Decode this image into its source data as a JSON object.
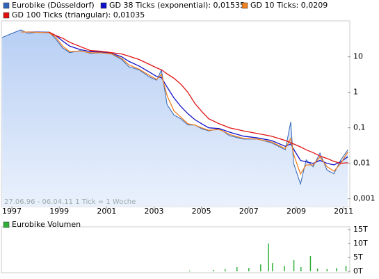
{
  "chart_data": [
    {
      "type": "line",
      "log_scale": true,
      "grid": false,
      "annotation": "27.06.96 - 06.04.11   1 Tick = 1 Woche",
      "xlim": [
        1996.5,
        2011.26
      ],
      "xticks": [
        1997,
        1999,
        2001,
        2003,
        2005,
        2007,
        2009,
        2011
      ],
      "ylim": [
        0.0006,
        90
      ],
      "yticks": [
        10,
        1,
        {
          "value": 0.1,
          "label": "0,1"
        },
        {
          "value": 0.01,
          "label": "0,01"
        },
        {
          "value": 0.001,
          "label": "0,001"
        }
      ],
      "x": [
        1996.59,
        1997.09,
        1997.38,
        1997.68,
        1998.12,
        1998.56,
        1998.85,
        1999.14,
        1999.44,
        1999.88,
        2000.32,
        2000.76,
        2001.2,
        2001.64,
        2001.93,
        2002.37,
        2002.81,
        2003.11,
        2003.31,
        2003.55,
        2003.84,
        2004.13,
        2004.43,
        2004.72,
        2005.01,
        2005.31,
        2005.75,
        2006.19,
        2006.77,
        2007.36,
        2007.95,
        2008.54,
        2008.77,
        2008.89,
        2009.18,
        2009.42,
        2009.71,
        2010.0,
        2010.3,
        2010.59,
        2010.88,
        2011.18
      ],
      "series": [
        {
          "name": "Eurobike (Düsseldorf)",
          "color": "#2f64b8",
          "area": true,
          "values": [
            35.2,
            48,
            57.5,
            46,
            50,
            50,
            32,
            17.9,
            13.1,
            15,
            12.5,
            13.1,
            12,
            8.4,
            5.3,
            4.3,
            2.7,
            2.2,
            4.3,
            0.45,
            0.23,
            0.18,
            0.12,
            0.12,
            0.094,
            0.082,
            0.094,
            0.06,
            0.048,
            0.048,
            0.038,
            0.024,
            0.147,
            0.01,
            0.0026,
            0.0125,
            0.008,
            0.0195,
            0.0064,
            0.0051,
            0.0125,
            0.024
          ]
        },
        {
          "name": "GD 38 Ticks (exponential): 0,01535",
          "color": "#1010c8",
          "values": [
            null,
            null,
            null,
            50,
            50,
            48,
            40,
            28,
            20,
            16,
            14,
            13.5,
            12.5,
            10,
            7.5,
            5.5,
            3.7,
            2.8,
            2.6,
            1.4,
            0.7,
            0.4,
            0.25,
            0.17,
            0.13,
            0.1,
            0.095,
            0.075,
            0.058,
            0.052,
            0.044,
            0.03,
            0.035,
            0.025,
            0.012,
            0.011,
            0.01,
            0.012,
            0.01,
            0.009,
            0.011,
            0.01535
          ]
        },
        {
          "name": "GD 10 Ticks: 0,0209",
          "color": "#f08020",
          "values": [
            null,
            null,
            50,
            50,
            49,
            48,
            36,
            20,
            14,
            14.5,
            13,
            13,
            12.2,
            9,
            6,
            4.5,
            3,
            2.3,
            3.2,
            0.8,
            0.3,
            0.2,
            0.13,
            0.12,
            0.1,
            0.085,
            0.09,
            0.065,
            0.05,
            0.048,
            0.04,
            0.026,
            0.05,
            0.018,
            0.005,
            0.009,
            0.009,
            0.015,
            0.008,
            0.006,
            0.01,
            0.0209
          ]
        },
        {
          "name": "GD 100 Ticks (triangular): 0,01035",
          "color": "#e01010",
          "values": [
            null,
            null,
            null,
            null,
            null,
            50,
            40,
            33.6,
            25.7,
            19.6,
            15,
            14.3,
            13.1,
            12,
            10.5,
            8.4,
            6.1,
            4.9,
            4.3,
            3.3,
            2.5,
            1.7,
            1.0,
            0.49,
            0.29,
            0.18,
            0.13,
            0.1,
            0.082,
            0.069,
            0.058,
            0.044,
            0.038,
            0.035,
            0.029,
            0.024,
            0.02,
            0.016,
            0.0137,
            0.0113,
            0.01,
            0.01035
          ]
        }
      ]
    },
    {
      "type": "bar",
      "xlim": [
        1996.5,
        2011.26
      ],
      "ylim": [
        0,
        16000
      ],
      "yticks": [
        {
          "value": 15000,
          "label": "15T"
        },
        {
          "value": 10000,
          "label": "10T"
        },
        {
          "value": 5000,
          "label": "5T"
        },
        {
          "value": 0,
          "label": "0T"
        }
      ],
      "x": [
        2004.5,
        2005.5,
        2006.0,
        2006.5,
        2007.0,
        2007.5,
        2007.83,
        2008.0,
        2008.5,
        2008.9,
        2009.2,
        2009.6,
        2009.9,
        2010.3,
        2010.7,
        2011.1
      ],
      "series": [
        {
          "name": "Eurobike Volumen",
          "color": "#2fae3a",
          "values": [
            300,
            500,
            800,
            1500,
            1200,
            2500,
            10000,
            3000,
            2000,
            4000,
            1500,
            5500,
            1000,
            800,
            1200,
            2000
          ]
        }
      ]
    }
  ]
}
